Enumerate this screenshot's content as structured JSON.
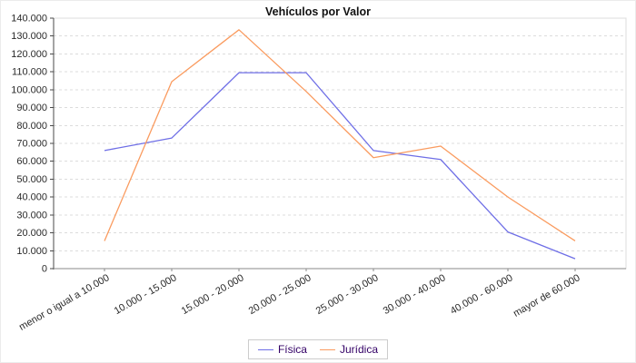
{
  "title": "Vehículos por Valor",
  "chart_data": {
    "type": "line",
    "title": "Vehículos por Valor",
    "categories": [
      "menor o igual a 10.000",
      "10.000 - 15.000",
      "15.000 - 20.000",
      "20.000 - 25.000",
      "25.000 - 30.000",
      "30.000 - 40.000",
      "40.000 - 60.000",
      "mayor de 60.000"
    ],
    "series": [
      {
        "name": "Física",
        "color": "#6e6ee6",
        "values": [
          66000,
          73000,
          109500,
          109500,
          66000,
          61000,
          20500,
          5500
        ]
      },
      {
        "name": "Jurídica",
        "color": "#fa9b5f",
        "values": [
          15500,
          104500,
          133500,
          99000,
          62000,
          68500,
          40000,
          15500
        ]
      }
    ],
    "ylim": [
      0,
      140000
    ],
    "y_tick_step": 10000,
    "y_tick_labels": [
      "0",
      "10.000",
      "20.000",
      "30.000",
      "40.000",
      "50.000",
      "60.000",
      "70.000",
      "80.000",
      "90.000",
      "100.000",
      "110.000",
      "120.000",
      "130.000",
      "140.000"
    ],
    "grid": true,
    "legend_position": "bottom",
    "styles": {
      "grid_color": "#dcdcdc",
      "plot_border_color": "#dcdcdc",
      "y_axis_line_color": "#4a4a4a",
      "x_axis_line_color": "#8a8a8a",
      "tick_label_color": "#2a2a2a",
      "legend_text_color": "#330066",
      "legend_border_color": "#cccccc"
    }
  }
}
